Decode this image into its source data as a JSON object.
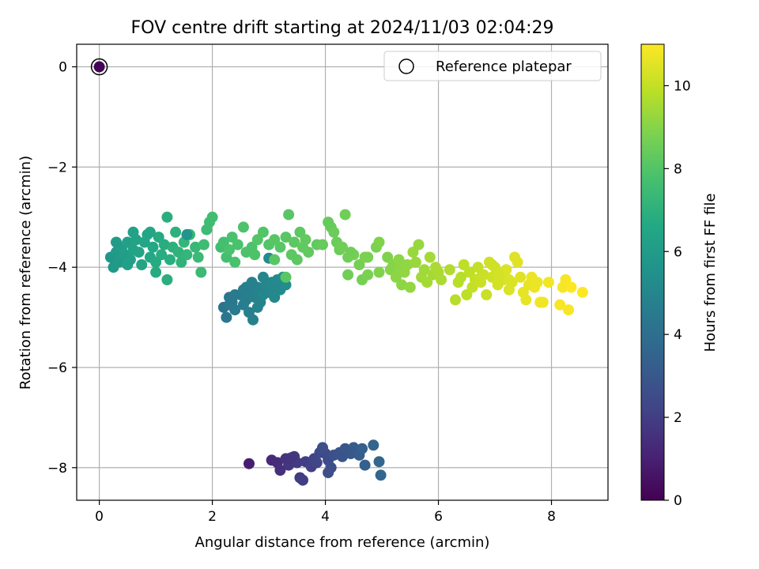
{
  "chart_data": {
    "type": "scatter",
    "title": "FOV centre drift starting at 2024/11/03 02:04:29",
    "xlabel": "Angular distance from reference (arcmin)",
    "ylabel": "Rotation from reference (arcmin)",
    "xlim": [
      -0.4,
      9.0
    ],
    "ylim": [
      -8.65,
      0.45
    ],
    "xticks": [
      0,
      2,
      4,
      6,
      8
    ],
    "yticks": [
      0,
      -2,
      -4,
      -6,
      -8
    ],
    "grid": true,
    "legend": {
      "placement": "top-right",
      "entries": [
        "Reference platepar"
      ]
    },
    "reference_point": {
      "x": 0,
      "y": 0,
      "hours": 0.1
    },
    "colorbar": {
      "label": "Hours from first FF file",
      "min": 0,
      "max": 11,
      "ticks": [
        0,
        2,
        4,
        6,
        8,
        10
      ],
      "colormap": "viridis"
    },
    "series": [
      {
        "points": [
          [
            2.65,
            -7.92,
            0.9
          ],
          [
            3.05,
            -7.85,
            1.3
          ],
          [
            3.15,
            -7.9,
            1.4
          ],
          [
            3.2,
            -8.05,
            1.5
          ],
          [
            3.3,
            -7.82,
            1.6
          ],
          [
            3.35,
            -7.95,
            1.7
          ],
          [
            3.45,
            -7.78,
            1.8
          ],
          [
            3.5,
            -7.9,
            1.9
          ],
          [
            3.55,
            -8.2,
            1.9
          ],
          [
            3.6,
            -8.25,
            2.0
          ],
          [
            3.65,
            -7.88,
            2.0
          ],
          [
            3.75,
            -7.98,
            2.1
          ],
          [
            3.8,
            -7.82,
            2.2
          ],
          [
            3.85,
            -7.9,
            2.3
          ],
          [
            3.9,
            -7.7,
            2.4
          ],
          [
            4.0,
            -7.72,
            2.5
          ],
          [
            4.05,
            -7.85,
            2.5
          ],
          [
            4.1,
            -8.0,
            2.6
          ],
          [
            4.05,
            -8.1,
            2.6
          ],
          [
            4.15,
            -7.75,
            2.7
          ],
          [
            4.25,
            -7.7,
            2.8
          ],
          [
            4.3,
            -7.78,
            2.8
          ],
          [
            4.35,
            -7.62,
            2.9
          ],
          [
            4.45,
            -7.72,
            3.0
          ],
          [
            4.5,
            -7.6,
            3.1
          ],
          [
            4.55,
            -7.7,
            3.1
          ],
          [
            4.6,
            -7.75,
            3.2
          ],
          [
            4.65,
            -7.62,
            3.3
          ],
          [
            4.7,
            -7.95,
            3.4
          ],
          [
            4.85,
            -7.55,
            3.5
          ],
          [
            4.95,
            -7.88,
            3.6
          ],
          [
            4.98,
            -8.15,
            3.6
          ],
          [
            3.95,
            -7.6,
            2.6
          ],
          [
            3.4,
            -7.8,
            1.7
          ],
          [
            2.2,
            -4.8,
            4.2
          ],
          [
            2.25,
            -5.0,
            4.3
          ],
          [
            2.3,
            -4.6,
            4.4
          ],
          [
            2.35,
            -4.7,
            4.4
          ],
          [
            2.4,
            -4.85,
            4.5
          ],
          [
            2.5,
            -4.55,
            4.5
          ],
          [
            2.55,
            -4.75,
            4.6
          ],
          [
            2.6,
            -4.65,
            4.6
          ],
          [
            2.65,
            -4.9,
            4.7
          ],
          [
            2.7,
            -4.5,
            4.7
          ],
          [
            2.72,
            -5.05,
            4.8
          ],
          [
            2.75,
            -4.6,
            4.8
          ],
          [
            2.8,
            -4.4,
            4.9
          ],
          [
            2.85,
            -4.7,
            4.9
          ],
          [
            2.9,
            -4.55,
            5.0
          ],
          [
            2.95,
            -4.35,
            5.0
          ],
          [
            3.0,
            -4.5,
            5.0
          ],
          [
            3.05,
            -4.3,
            5.1
          ],
          [
            3.1,
            -4.6,
            5.1
          ],
          [
            3.15,
            -4.25,
            5.2
          ],
          [
            3.2,
            -4.45,
            5.2
          ],
          [
            3.25,
            -4.2,
            5.3
          ],
          [
            3.3,
            -4.35,
            5.3
          ],
          [
            2.4,
            -4.55,
            4.5
          ],
          [
            2.6,
            -4.4,
            4.7
          ],
          [
            2.8,
            -4.8,
            4.9
          ],
          [
            3.0,
            -3.82,
            5.2
          ],
          [
            2.7,
            -4.3,
            4.8
          ],
          [
            2.9,
            -4.2,
            5.0
          ],
          [
            3.1,
            -4.4,
            5.1
          ],
          [
            2.55,
            -4.45,
            4.6
          ],
          [
            2.3,
            -4.75,
            4.4
          ],
          [
            0.2,
            -3.8,
            5.8
          ],
          [
            0.25,
            -4.0,
            5.9
          ],
          [
            0.3,
            -3.7,
            6.0
          ],
          [
            0.35,
            -3.9,
            6.0
          ],
          [
            0.4,
            -3.6,
            6.1
          ],
          [
            0.45,
            -3.75,
            6.1
          ],
          [
            0.5,
            -3.5,
            6.2
          ],
          [
            0.55,
            -3.85,
            6.2
          ],
          [
            0.6,
            -3.65,
            6.3
          ],
          [
            0.65,
            -3.45,
            6.3
          ],
          [
            0.7,
            -3.7,
            6.4
          ],
          [
            0.75,
            -3.95,
            6.4
          ],
          [
            0.8,
            -3.5,
            6.5
          ],
          [
            0.85,
            -3.35,
            6.5
          ],
          [
            0.9,
            -3.8,
            6.6
          ],
          [
            0.95,
            -3.6,
            6.6
          ],
          [
            1.0,
            -3.9,
            6.7
          ],
          [
            1.05,
            -3.4,
            6.7
          ],
          [
            1.1,
            -3.75,
            6.8
          ],
          [
            1.15,
            -3.55,
            6.8
          ],
          [
            1.2,
            -3.0,
            6.9
          ],
          [
            1.25,
            -3.85,
            6.9
          ],
          [
            1.3,
            -3.6,
            7.0
          ],
          [
            1.35,
            -3.3,
            7.0
          ],
          [
            1.4,
            -3.7,
            7.1
          ],
          [
            1.45,
            -3.9,
            7.1
          ],
          [
            1.5,
            -3.5,
            7.2
          ],
          [
            1.55,
            -3.75,
            7.2
          ],
          [
            1.6,
            -3.35,
            7.3
          ],
          [
            1.7,
            -3.6,
            7.3
          ],
          [
            1.75,
            -3.8,
            7.4
          ],
          [
            1.8,
            -4.1,
            7.4
          ],
          [
            1.85,
            -3.55,
            7.5
          ],
          [
            1.9,
            -3.25,
            7.5
          ],
          [
            1.95,
            -3.1,
            7.5
          ],
          [
            2.0,
            -3.0,
            7.6
          ],
          [
            1.2,
            -4.25,
            6.9
          ],
          [
            1.0,
            -4.1,
            6.7
          ],
          [
            0.6,
            -3.3,
            6.3
          ],
          [
            0.9,
            -3.3,
            6.5
          ],
          [
            1.55,
            -3.35,
            5.7
          ],
          [
            2.15,
            -3.6,
            7.6
          ],
          [
            0.3,
            -3.5,
            6.0
          ],
          [
            0.5,
            -3.95,
            6.2
          ],
          [
            2.2,
            -3.5,
            7.7
          ],
          [
            2.25,
            -3.8,
            7.7
          ],
          [
            2.3,
            -3.65,
            7.8
          ],
          [
            2.35,
            -3.4,
            7.8
          ],
          [
            2.4,
            -3.9,
            7.8
          ],
          [
            2.45,
            -3.55,
            7.8
          ],
          [
            2.55,
            -3.2,
            7.9
          ],
          [
            2.6,
            -3.7,
            7.9
          ],
          [
            2.7,
            -3.6,
            7.9
          ],
          [
            2.8,
            -3.45,
            8.0
          ],
          [
            2.9,
            -3.3,
            8.0
          ],
          [
            3.0,
            -3.55,
            8.0
          ],
          [
            3.1,
            -3.45,
            8.1
          ],
          [
            3.2,
            -3.6,
            8.1
          ],
          [
            3.3,
            -3.4,
            8.1
          ],
          [
            3.35,
            -2.95,
            8.1
          ],
          [
            3.4,
            -3.75,
            8.2
          ],
          [
            3.45,
            -3.5,
            8.2
          ],
          [
            3.5,
            -3.85,
            8.2
          ],
          [
            3.55,
            -3.3,
            8.2
          ],
          [
            3.6,
            -3.6,
            8.3
          ],
          [
            3.65,
            -3.45,
            8.3
          ],
          [
            3.1,
            -3.85,
            8.1
          ],
          [
            3.3,
            -4.2,
            8.1
          ],
          [
            2.75,
            -3.75,
            7.9
          ],
          [
            3.85,
            -3.55,
            8.3
          ],
          [
            3.95,
            -3.55,
            8.4
          ],
          [
            4.05,
            -3.1,
            8.4
          ],
          [
            4.1,
            -3.2,
            8.4
          ],
          [
            4.15,
            -3.3,
            8.5
          ],
          [
            4.2,
            -3.5,
            8.5
          ],
          [
            4.25,
            -3.65,
            8.5
          ],
          [
            4.3,
            -3.6,
            8.6
          ],
          [
            4.35,
            -2.95,
            8.6
          ],
          [
            4.4,
            -3.8,
            8.6
          ],
          [
            4.4,
            -4.15,
            8.6
          ],
          [
            4.5,
            -3.75,
            8.7
          ],
          [
            4.6,
            -3.95,
            8.7
          ],
          [
            4.65,
            -4.25,
            8.7
          ],
          [
            4.7,
            -3.8,
            8.8
          ],
          [
            4.75,
            -4.15,
            8.8
          ],
          [
            4.9,
            -3.6,
            8.8
          ],
          [
            4.95,
            -3.5,
            8.9
          ],
          [
            4.95,
            -4.1,
            8.9
          ],
          [
            5.1,
            -3.8,
            8.9
          ],
          [
            5.15,
            -4.05,
            9.0
          ],
          [
            5.2,
            -3.95,
            9.0
          ],
          [
            5.25,
            -4.2,
            9.1
          ],
          [
            5.3,
            -4.05,
            9.1
          ],
          [
            5.35,
            -4.35,
            9.1
          ],
          [
            5.4,
            -4.1,
            9.2
          ],
          [
            5.45,
            -3.95,
            9.2
          ],
          [
            5.5,
            -4.4,
            9.2
          ],
          [
            5.55,
            -3.7,
            9.3
          ],
          [
            5.6,
            -3.9,
            9.3
          ],
          [
            5.65,
            -3.55,
            9.3
          ],
          [
            5.7,
            -4.2,
            9.4
          ],
          [
            5.75,
            -4.05,
            9.4
          ],
          [
            5.8,
            -4.3,
            9.5
          ],
          [
            5.85,
            -3.8,
            9.5
          ],
          [
            5.9,
            -4.15,
            9.5
          ],
          [
            5.95,
            -4.0,
            9.6
          ],
          [
            6.0,
            -4.1,
            9.6
          ],
          [
            6.05,
            -4.25,
            9.6
          ],
          [
            4.75,
            -3.8,
            8.8
          ],
          [
            3.7,
            -3.7,
            8.3
          ],
          [
            5.3,
            -3.85,
            9.1
          ],
          [
            4.45,
            -3.7,
            8.6
          ],
          [
            6.2,
            -4.05,
            9.7
          ],
          [
            6.3,
            -4.65,
            9.8
          ],
          [
            6.35,
            -4.3,
            9.8
          ],
          [
            6.4,
            -4.2,
            9.8
          ],
          [
            6.45,
            -3.95,
            9.9
          ],
          [
            6.5,
            -4.55,
            9.9
          ],
          [
            6.55,
            -4.1,
            9.9
          ],
          [
            6.6,
            -4.4,
            10.0
          ],
          [
            6.65,
            -4.25,
            10.0
          ],
          [
            6.7,
            -4.0,
            10.0
          ],
          [
            6.75,
            -4.3,
            10.1
          ],
          [
            6.8,
            -4.15,
            10.1
          ],
          [
            6.85,
            -4.55,
            10.1
          ],
          [
            6.9,
            -3.9,
            10.2
          ],
          [
            6.95,
            -4.2,
            10.2
          ],
          [
            7.0,
            -4.0,
            10.2
          ],
          [
            7.05,
            -4.35,
            10.3
          ],
          [
            7.1,
            -4.1,
            10.3
          ],
          [
            7.15,
            -4.25,
            10.3
          ],
          [
            7.2,
            -4.05,
            10.4
          ],
          [
            7.25,
            -4.45,
            10.4
          ],
          [
            7.3,
            -4.3,
            10.4
          ],
          [
            7.35,
            -3.8,
            10.5
          ],
          [
            7.4,
            -3.9,
            10.5
          ],
          [
            7.45,
            -4.2,
            10.5
          ],
          [
            7.5,
            -4.5,
            10.6
          ],
          [
            7.55,
            -4.65,
            10.6
          ],
          [
            7.6,
            -4.35,
            10.6
          ],
          [
            7.65,
            -4.2,
            10.7
          ],
          [
            7.7,
            -4.4,
            10.7
          ],
          [
            7.75,
            -4.3,
            10.7
          ],
          [
            7.8,
            -4.7,
            10.8
          ],
          [
            7.85,
            -4.7,
            10.8
          ],
          [
            7.95,
            -4.3,
            10.8
          ],
          [
            8.15,
            -4.75,
            10.9
          ],
          [
            8.2,
            -4.4,
            10.9
          ],
          [
            8.25,
            -4.25,
            10.9
          ],
          [
            8.3,
            -4.85,
            10.9
          ],
          [
            8.35,
            -4.4,
            11.0
          ],
          [
            8.55,
            -4.5,
            11.0
          ],
          [
            6.95,
            -3.95,
            10.2
          ],
          [
            7.25,
            -4.25,
            10.4
          ],
          [
            6.75,
            -4.2,
            10.1
          ],
          [
            7.05,
            -4.15,
            10.3
          ]
        ]
      }
    ]
  }
}
